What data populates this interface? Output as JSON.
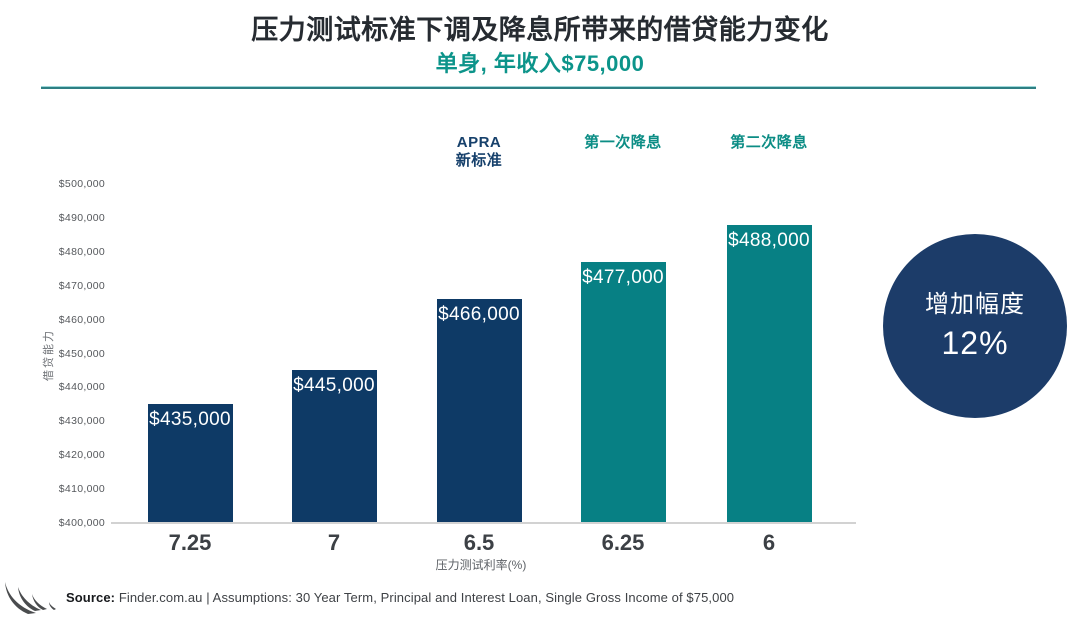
{
  "page": {
    "title": "压力测试标准下调及降息所带来的借贷能力变化",
    "subtitle": "单身, 年收入$75,000"
  },
  "colors": {
    "navy_bar": "#0e3a66",
    "teal_bar": "#078084",
    "subtitle_teal": "#0c948a",
    "circle_navy": "#1c3c69",
    "divider_teal": "#2e7f83",
    "title_text": "#262b31"
  },
  "chart_data": {
    "type": "bar",
    "title": "压力测试标准下调及降息所带来的借贷能力变化",
    "subtitle": "单身, 年收入$75,000",
    "categories": [
      "7.25",
      "7",
      "6.5",
      "6.25",
      "6"
    ],
    "values": [
      435000,
      445000,
      466000,
      477000,
      488000
    ],
    "value_labels": [
      "$435,000",
      "$445,000",
      "$466,000",
      "$477,000",
      "$488,000"
    ],
    "bar_colors": [
      "#0e3a66",
      "#0e3a66",
      "#0e3a66",
      "#078084",
      "#078084"
    ],
    "group_labels": [
      {
        "index": 2,
        "lines": [
          "APRA",
          "新标准"
        ],
        "color": "#16406b"
      },
      {
        "index": 3,
        "lines": [
          "第一次降息"
        ],
        "color": "#0c8d85"
      },
      {
        "index": 4,
        "lines": [
          "第二次降息"
        ],
        "color": "#0c8d85"
      }
    ],
    "xlabel": "压力测试利率(%)",
    "ylabel": "借贷能力",
    "ylim": [
      400000,
      500000
    ],
    "ytick_labels": [
      "$500,000",
      "$490,000",
      "$480,000",
      "$470,000",
      "$460,000",
      "$450,000",
      "$440,000",
      "$430,000",
      "$420,000",
      "$410,000",
      "$400,000"
    ],
    "grid": false,
    "legend": "none"
  },
  "badge": {
    "line1": "增加幅度",
    "line2": "12%"
  },
  "footer": {
    "logo_icon": "swoosh-logo-icon",
    "source_label": "Source:",
    "source_text": " Finder.com.au | Assumptions: 30 Year Term, Principal and Interest Loan, Single Gross Income of $75,000"
  }
}
